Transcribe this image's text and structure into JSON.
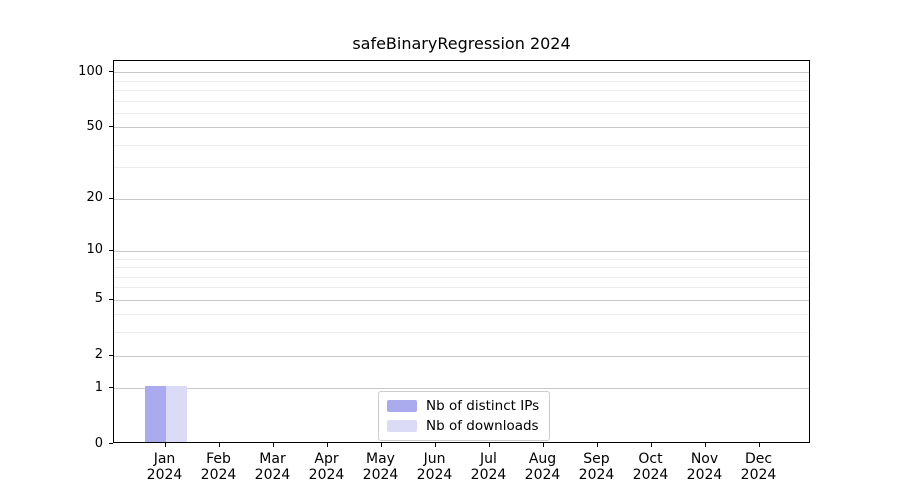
{
  "chart_data": {
    "type": "bar",
    "title": "safeBinaryRegression 2024",
    "categories": [
      "Jan 2024",
      "Feb 2024",
      "Mar 2024",
      "Apr 2024",
      "May 2024",
      "Jun 2024",
      "Jul 2024",
      "Aug 2024",
      "Sep 2024",
      "Oct 2024",
      "Nov 2024",
      "Dec 2024"
    ],
    "series": [
      {
        "name": "Nb of distinct IPs",
        "color": "#aaaaef",
        "values": [
          1,
          0,
          0,
          0,
          0,
          0,
          0,
          0,
          0,
          0,
          0,
          0
        ]
      },
      {
        "name": "Nb of downloads",
        "color": "#dbdbf8",
        "values": [
          1,
          0,
          0,
          0,
          0,
          0,
          0,
          0,
          0,
          0,
          0,
          0
        ]
      }
    ],
    "xlabel": "",
    "ylabel": "",
    "yscale": "log1p",
    "ylim": [
      0,
      115
    ],
    "yticks_major": [
      0,
      1,
      2,
      5,
      10,
      20,
      50,
      100
    ],
    "yticks_minor": [
      3,
      4,
      6,
      7,
      8,
      9,
      30,
      40,
      60,
      70,
      80,
      90
    ],
    "grid": true,
    "legend_position": "lower center",
    "colors": {
      "background": "#ffffff",
      "major_grid": "#c9c9c9",
      "minor_grid": "#ececec",
      "axis": "#000000"
    }
  }
}
